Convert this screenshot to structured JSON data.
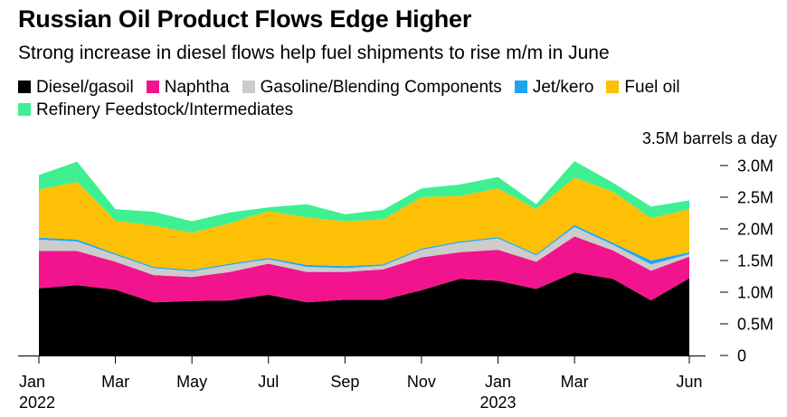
{
  "chart_data": {
    "type": "area",
    "stacked": true,
    "title": "Russian Oil Product Flows Edge Higher",
    "subtitle": "Strong increase in diesel flows help fuel shipments to rise m/m in June",
    "unit_label": "3.5M barrels a day",
    "x": [
      "2022-01",
      "2022-02",
      "2022-03",
      "2022-04",
      "2022-05",
      "2022-06",
      "2022-07",
      "2022-08",
      "2022-09",
      "2022-10",
      "2022-11",
      "2022-12",
      "2023-01",
      "2023-02",
      "2023-03",
      "2023-04",
      "2023-05",
      "2023-06"
    ],
    "x_ticks": [
      {
        "x": "2022-01",
        "label": "Jan",
        "year": "2022"
      },
      {
        "x": "2022-03",
        "label": "Mar",
        "year": ""
      },
      {
        "x": "2022-05",
        "label": "May",
        "year": ""
      },
      {
        "x": "2022-07",
        "label": "Jul",
        "year": ""
      },
      {
        "x": "2022-09",
        "label": "Sep",
        "year": ""
      },
      {
        "x": "2022-11",
        "label": "Nov",
        "year": ""
      },
      {
        "x": "2023-01",
        "label": "Jan",
        "year": "2023"
      },
      {
        "x": "2023-03",
        "label": "Mar",
        "year": ""
      },
      {
        "x": "2023-06",
        "label": "Jun",
        "year": ""
      }
    ],
    "y_ticks": [
      {
        "value": 0,
        "label": "0"
      },
      {
        "value": 0.5,
        "label": "0.5M"
      },
      {
        "value": 1.0,
        "label": "1.0M"
      },
      {
        "value": 1.5,
        "label": "1.5M"
      },
      {
        "value": 2.0,
        "label": "2.0M"
      },
      {
        "value": 2.5,
        "label": "2.5M"
      },
      {
        "value": 3.0,
        "label": "3.0M"
      }
    ],
    "ylim": [
      0,
      3.5
    ],
    "grid": false,
    "legend_position": "top",
    "series": [
      {
        "name": "Diesel/gasoil",
        "color": "#000000",
        "values": [
          1.06,
          1.11,
          1.04,
          0.84,
          0.86,
          0.87,
          0.96,
          0.84,
          0.88,
          0.88,
          1.03,
          1.21,
          1.18,
          1.05,
          1.31,
          1.21,
          0.87,
          1.22
        ]
      },
      {
        "name": "Naphtha",
        "color": "#f2148c",
        "values": [
          0.59,
          0.54,
          0.44,
          0.43,
          0.38,
          0.45,
          0.49,
          0.48,
          0.44,
          0.48,
          0.52,
          0.42,
          0.49,
          0.43,
          0.57,
          0.45,
          0.47,
          0.34
        ]
      },
      {
        "name": "Gasoline/Blending Components",
        "color": "#cccccc",
        "values": [
          0.18,
          0.15,
          0.11,
          0.11,
          0.09,
          0.11,
          0.07,
          0.08,
          0.06,
          0.06,
          0.12,
          0.15,
          0.18,
          0.1,
          0.15,
          0.09,
          0.1,
          0.04
        ]
      },
      {
        "name": "Jet/kero",
        "color": "#1ca6f2",
        "values": [
          0.03,
          0.03,
          0.02,
          0.02,
          0.02,
          0.02,
          0.02,
          0.03,
          0.03,
          0.02,
          0.02,
          0.02,
          0.02,
          0.02,
          0.03,
          0.03,
          0.06,
          0.03
        ]
      },
      {
        "name": "Fuel oil",
        "color": "#fdc006",
        "values": [
          0.76,
          0.91,
          0.52,
          0.65,
          0.59,
          0.64,
          0.74,
          0.75,
          0.71,
          0.71,
          0.81,
          0.72,
          0.77,
          0.71,
          0.75,
          0.81,
          0.67,
          0.68
        ]
      },
      {
        "name": "Refinery Feedstock/Intermediates",
        "color": "#3ef092",
        "values": [
          0.23,
          0.32,
          0.18,
          0.22,
          0.18,
          0.17,
          0.06,
          0.21,
          0.11,
          0.15,
          0.14,
          0.18,
          0.18,
          0.08,
          0.26,
          0.14,
          0.18,
          0.14
        ]
      }
    ]
  }
}
